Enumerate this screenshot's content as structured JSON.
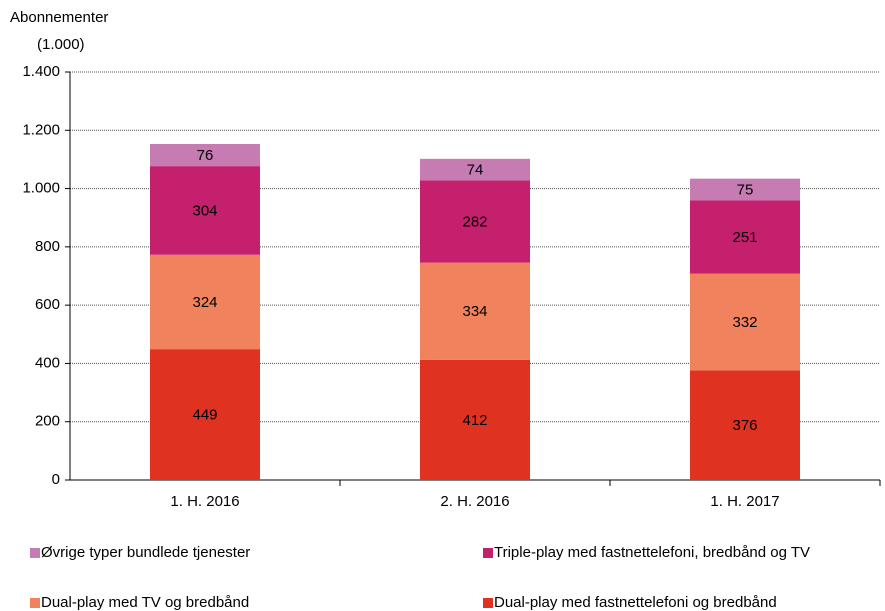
{
  "chart_data": {
    "type": "stacked_bar",
    "y_label": [
      "Abonnementer",
      "(1.000)"
    ],
    "categories": [
      "1. H. 2016",
      "2. H. 2016",
      "1. H. 2017"
    ],
    "series": [
      {
        "name": "Dual-play med fastnettelefoni og bredbånd",
        "color": "#e03221",
        "values": [
          449,
          412,
          376
        ]
      },
      {
        "name": "Dual-play med TV og bredbånd",
        "color": "#f0835d",
        "values": [
          324,
          334,
          332
        ]
      },
      {
        "name": "Triple-play med fastnettelefoni, bredbånd og TV",
        "color": "#c5206d",
        "values": [
          304,
          282,
          251
        ]
      },
      {
        "name": "Øvrige typer bundlede tjenester",
        "color": "#c67bb3",
        "values": [
          76,
          74,
          75
        ]
      }
    ],
    "ylim": [
      0,
      1400
    ],
    "yticks": [
      0,
      200,
      400,
      600,
      800,
      {
        "value": 1000,
        "label": "1.000"
      },
      {
        "value": 1200,
        "label": "1.200"
      },
      {
        "value": 1400,
        "label": "1.400"
      }
    ],
    "grid": true
  }
}
